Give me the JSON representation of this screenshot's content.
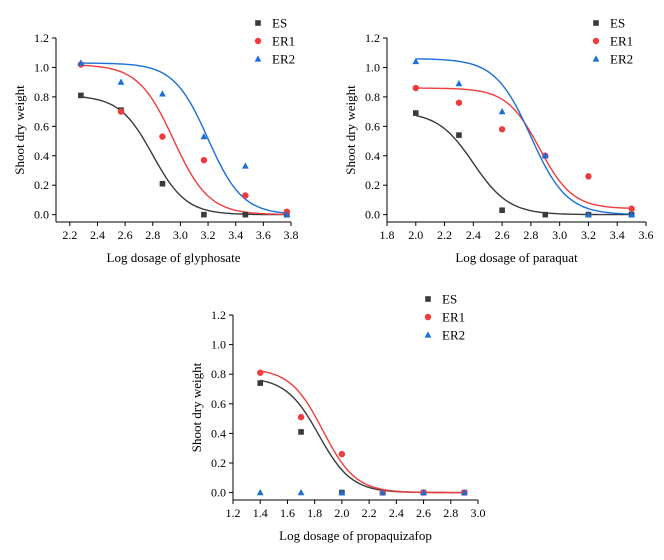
{
  "colors": {
    "ES": "#3a3a3a",
    "ER1": "#f03c3c",
    "ER2": "#1a6fd8"
  },
  "chart_data": [
    {
      "type": "scatter",
      "xlabel": "Log dosage of glyphosate",
      "ylabel": "Shoot dry weight",
      "xlim": [
        2.1,
        3.8
      ],
      "ylim": [
        -0.05,
        1.2
      ],
      "xticks": [
        "2.2",
        "2.4",
        "2.6",
        "2.8",
        "3.0",
        "3.2",
        "3.4",
        "3.6",
        "3.8"
      ],
      "yticks": [
        "0.0",
        "0.2",
        "0.4",
        "0.6",
        "0.8",
        "1.0",
        "1.2"
      ],
      "legend_position": "top-right",
      "series": [
        {
          "name": "ES",
          "marker": "square",
          "x": [
            2.28,
            2.57,
            2.87,
            3.17,
            3.47,
            3.77
          ],
          "y": [
            0.81,
            0.71,
            0.21,
            0.0,
            0.0,
            0.0
          ],
          "fit": {
            "top": 0.81,
            "bottom": 0.0,
            "ec50": 2.8,
            "slope": 3.6
          }
        },
        {
          "name": "ER1",
          "marker": "circle",
          "x": [
            2.28,
            2.57,
            2.87,
            3.17,
            3.47,
            3.77
          ],
          "y": [
            1.02,
            0.7,
            0.53,
            0.37,
            0.13,
            0.02
          ],
          "fit": {
            "top": 1.02,
            "bottom": 0.0,
            "ec50": 2.95,
            "slope": 3.4
          }
        },
        {
          "name": "ER2",
          "marker": "triangle",
          "x": [
            2.28,
            2.57,
            2.87,
            3.17,
            3.47,
            3.77
          ],
          "y": [
            1.03,
            0.9,
            0.82,
            0.53,
            0.33,
            0.0
          ],
          "fit": {
            "top": 1.03,
            "bottom": 0.0,
            "ec50": 3.2,
            "slope": 3.5
          }
        }
      ]
    },
    {
      "type": "scatter",
      "xlabel": "Log dosage of paraquat",
      "ylabel": "Shoot dry weight",
      "xlim": [
        1.8,
        3.6
      ],
      "ylim": [
        -0.05,
        1.2
      ],
      "xticks": [
        "1.8",
        "2.0",
        "2.2",
        "2.4",
        "2.6",
        "2.8",
        "3.0",
        "3.2",
        "3.4",
        "3.6"
      ],
      "yticks": [
        "0.0",
        "0.2",
        "0.4",
        "0.6",
        "0.8",
        "1.0",
        "1.2"
      ],
      "legend_position": "top-right",
      "series": [
        {
          "name": "ES",
          "marker": "square",
          "x": [
            2.0,
            2.3,
            2.6,
            2.9,
            3.2,
            3.5
          ],
          "y": [
            0.69,
            0.54,
            0.03,
            0.0,
            0.0,
            0.0
          ],
          "fit": {
            "top": 0.7,
            "bottom": 0.0,
            "ec50": 2.4,
            "slope": 3.5
          }
        },
        {
          "name": "ER1",
          "marker": "circle",
          "x": [
            2.0,
            2.3,
            2.6,
            2.9,
            3.2,
            3.5
          ],
          "y": [
            0.86,
            0.76,
            0.58,
            0.4,
            0.26,
            0.04
          ],
          "fit": {
            "top": 0.86,
            "bottom": 0.04,
            "ec50": 2.86,
            "slope": 3.8
          }
        },
        {
          "name": "ER2",
          "marker": "triangle",
          "x": [
            2.0,
            2.3,
            2.6,
            2.9,
            3.2,
            3.5
          ],
          "y": [
            1.04,
            0.89,
            0.7,
            0.4,
            0.0,
            0.0
          ],
          "fit": {
            "top": 1.06,
            "bottom": 0.0,
            "ec50": 2.8,
            "slope": 3.5
          }
        }
      ]
    },
    {
      "type": "scatter",
      "xlabel": "Log dosage of propaquizafop",
      "ylabel": "Shoot dry weight",
      "xlim": [
        1.2,
        3.0
      ],
      "ylim": [
        -0.05,
        1.2
      ],
      "xticks": [
        "1.2",
        "1.4",
        "1.6",
        "1.8",
        "2.0",
        "2.2",
        "2.4",
        "2.6",
        "2.8",
        "3.0"
      ],
      "yticks": [
        "0.0",
        "0.2",
        "0.4",
        "0.6",
        "0.8",
        "1.0",
        "1.2"
      ],
      "legend_position": "top-right",
      "series": [
        {
          "name": "ES",
          "marker": "square",
          "x": [
            1.4,
            1.7,
            2.0,
            2.3,
            2.6,
            2.9
          ],
          "y": [
            0.74,
            0.41,
            0.0,
            0.0,
            0.0,
            0.0
          ],
          "fit": {
            "top": 0.78,
            "bottom": 0.0,
            "ec50": 1.83,
            "slope": 3.6
          }
        },
        {
          "name": "ER1",
          "marker": "circle",
          "x": [
            1.4,
            1.7,
            2.0,
            2.3,
            2.6,
            2.9
          ],
          "y": [
            0.81,
            0.51,
            0.26,
            0.0,
            0.0,
            0.0
          ],
          "fit": {
            "top": 0.84,
            "bottom": 0.0,
            "ec50": 1.86,
            "slope": 3.6
          }
        },
        {
          "name": "ER2",
          "marker": "triangle",
          "x": [
            1.4,
            1.7,
            2.0,
            2.3,
            2.6,
            2.9
          ],
          "y": [
            0.0,
            0.0,
            0.0,
            0.0,
            0.0,
            0.0
          ],
          "fit": null
        }
      ]
    }
  ]
}
